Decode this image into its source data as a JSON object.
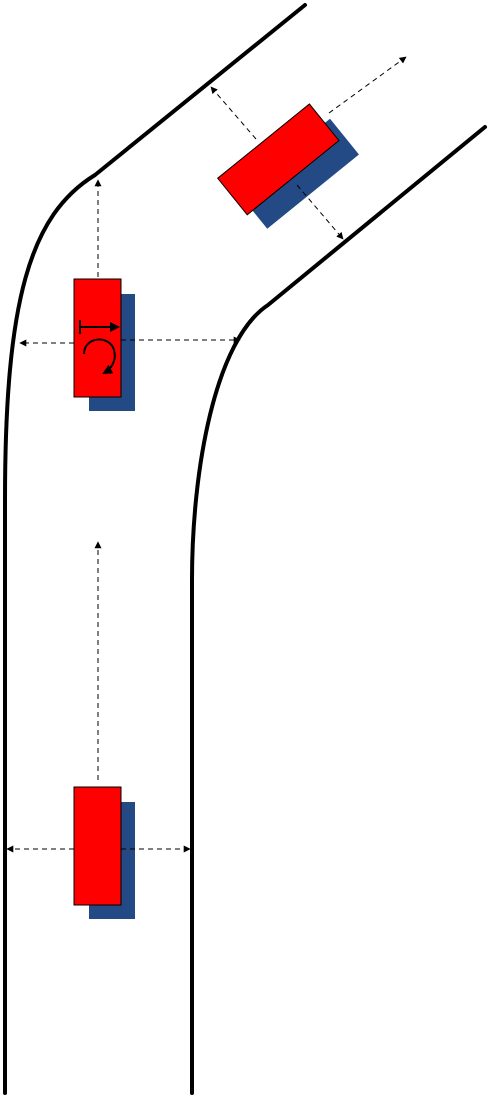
{
  "colors": {
    "background": "#ffffff",
    "road_edge": "#000000",
    "vehicle_body": "#ff0000",
    "vehicle_shadow": "#234a84",
    "sensor_ray": "#000000"
  },
  "vehicles": [
    {
      "id": "vehicle-bottom",
      "orientation": "straight",
      "heading_indicators": false
    },
    {
      "id": "vehicle-middle",
      "orientation": "straight",
      "heading_indicators": true
    },
    {
      "id": "vehicle-top",
      "orientation": "rotated",
      "heading_indicators": false
    }
  ],
  "icons": [
    "forward-arrow-icon",
    "rotation-arrow-icon"
  ]
}
